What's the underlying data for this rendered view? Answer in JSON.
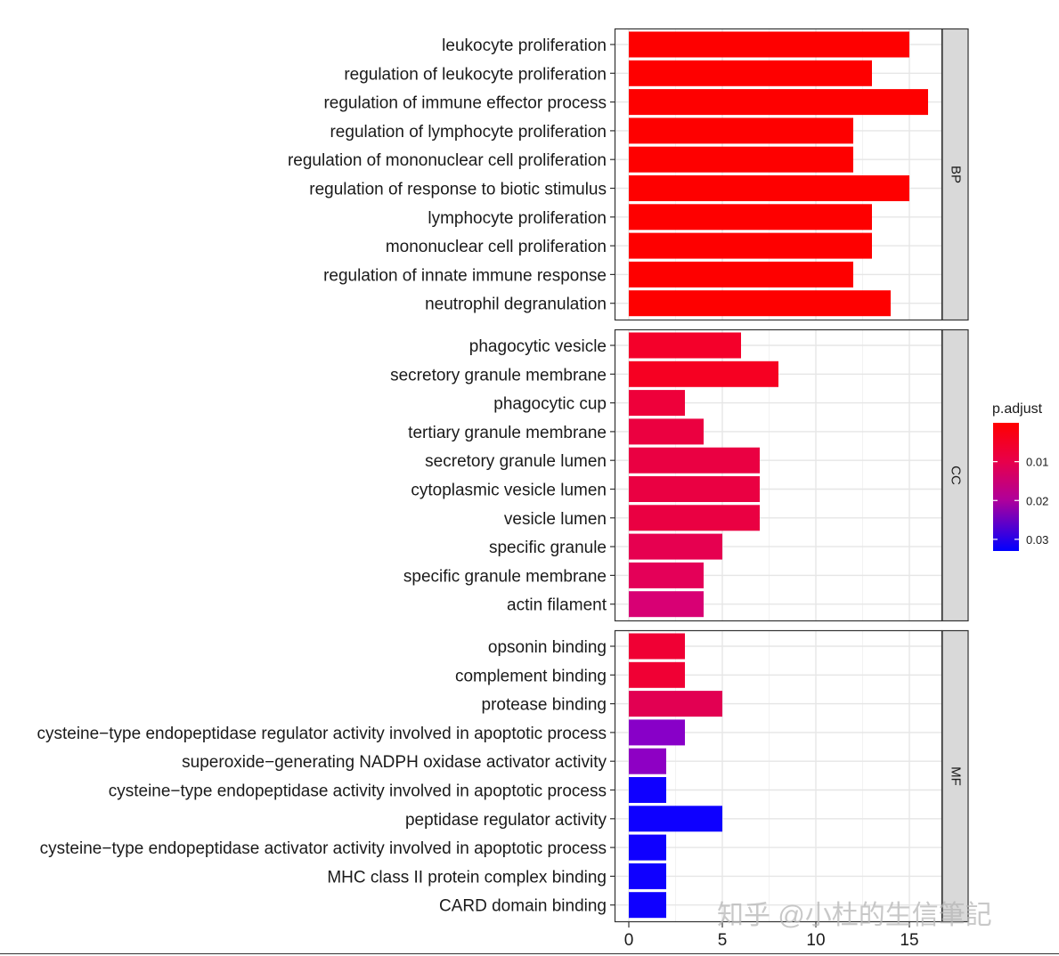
{
  "chart_data": {
    "type": "bar",
    "orientation": "horizontal",
    "title": "",
    "xlabel": "",
    "ylabel": "",
    "xlim": [
      0,
      16
    ],
    "x_ticks": [
      0,
      5,
      10,
      15
    ],
    "grid": true,
    "facets": [
      {
        "name": "BP",
        "bars": [
          {
            "label": "leukocyte proliferation",
            "value": 15,
            "color": "#fe0000"
          },
          {
            "label": "regulation of leukocyte proliferation",
            "value": 13,
            "color": "#fe0000"
          },
          {
            "label": "regulation of immune effector process",
            "value": 16,
            "color": "#fe0000"
          },
          {
            "label": "regulation of lymphocyte proliferation",
            "value": 12,
            "color": "#fe0000"
          },
          {
            "label": "regulation of mononuclear cell proliferation",
            "value": 12,
            "color": "#fe0000"
          },
          {
            "label": "regulation of response to biotic stimulus",
            "value": 15,
            "color": "#fe0000"
          },
          {
            "label": "lymphocyte proliferation",
            "value": 13,
            "color": "#fe0000"
          },
          {
            "label": "mononuclear cell proliferation",
            "value": 13,
            "color": "#fe0000"
          },
          {
            "label": "regulation of innate immune response",
            "value": 12,
            "color": "#fe0000"
          },
          {
            "label": "neutrophil degranulation",
            "value": 14,
            "color": "#fe0000"
          }
        ]
      },
      {
        "name": "CC",
        "bars": [
          {
            "label": "phagocytic vesicle",
            "value": 6,
            "color": "#f4002a"
          },
          {
            "label": "secretory granule membrane",
            "value": 8,
            "color": "#f60022"
          },
          {
            "label": "phagocytic cup",
            "value": 3,
            "color": "#ee003a"
          },
          {
            "label": "tertiary granule membrane",
            "value": 4,
            "color": "#eb0040"
          },
          {
            "label": "secretory granule lumen",
            "value": 7,
            "color": "#ea0042"
          },
          {
            "label": "cytoplasmic vesicle lumen",
            "value": 7,
            "color": "#ea0042"
          },
          {
            "label": "vesicle lumen",
            "value": 7,
            "color": "#ea0042"
          },
          {
            "label": "specific granule",
            "value": 5,
            "color": "#e60050"
          },
          {
            "label": "specific granule membrane",
            "value": 4,
            "color": "#e40058"
          },
          {
            "label": "actin filament",
            "value": 4,
            "color": "#d80074"
          }
        ]
      },
      {
        "name": "MF",
        "bars": [
          {
            "label": "opsonin binding",
            "value": 3,
            "color": "#f00034"
          },
          {
            "label": "complement binding",
            "value": 3,
            "color": "#f00034"
          },
          {
            "label": "protease binding",
            "value": 5,
            "color": "#e20052"
          },
          {
            "label": "cysteine−type endopeptidase regulator activity involved in apoptotic process",
            "value": 3,
            "color": "#8800c8"
          },
          {
            "label": "superoxide−generating NADPH oxidase activator activity",
            "value": 2,
            "color": "#8e00c4"
          },
          {
            "label": "cysteine−type endopeptidase activity involved in apoptotic process",
            "value": 2,
            "color": "#0f00ff"
          },
          {
            "label": "peptidase regulator activity",
            "value": 5,
            "color": "#0e00ff"
          },
          {
            "label": "cysteine−type endopeptidase activator activity involved in apoptotic process",
            "value": 2,
            "color": "#0f00ff"
          },
          {
            "label": "MHC class II protein complex binding",
            "value": 2,
            "color": "#0f00ff"
          },
          {
            "label": "CARD domain binding",
            "value": 2,
            "color": "#0f00ff"
          }
        ]
      }
    ],
    "legend": {
      "title": "p.adjust",
      "position": "right",
      "ticks": [
        "0.01",
        "0.02",
        "0.03"
      ],
      "tick_values": [
        0.01,
        0.02,
        0.03
      ],
      "range": [
        0.0,
        0.033
      ],
      "color_low": "#ff0000",
      "color_high": "#0000ff"
    }
  },
  "watermark": "知乎 @小杜的生信筆記"
}
